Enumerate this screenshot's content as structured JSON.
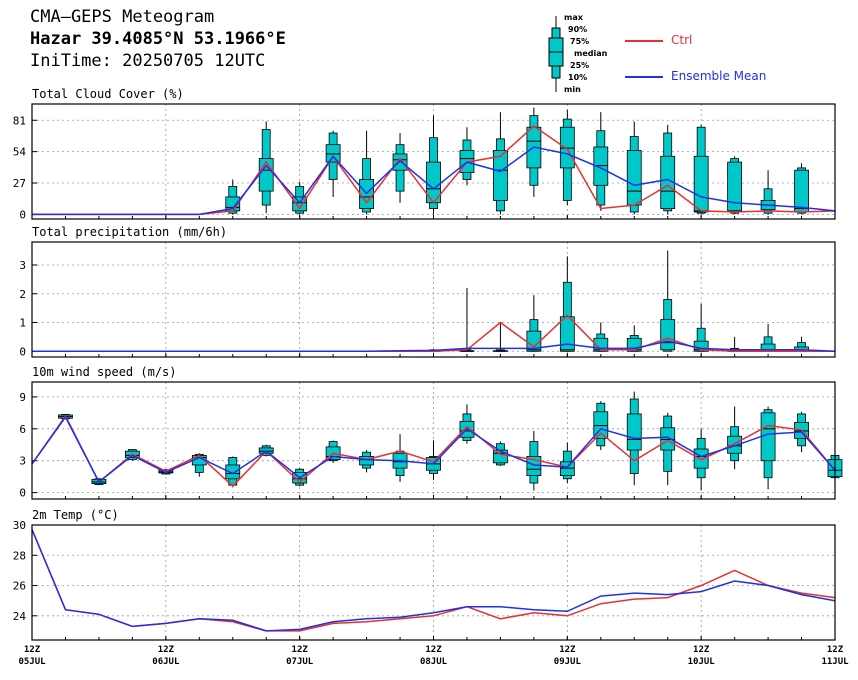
{
  "header": {
    "title": "CMA–GEPS Meteogram",
    "location": "Hazar 39.4085°N 53.1966°E",
    "init": "IniTime: 20250705 12UTC"
  },
  "legend": {
    "max": "max",
    "p90": "90%",
    "p75": "75%",
    "median": "median",
    "p25": "25%",
    "p10": "10%",
    "min": "min",
    "ctrl": "Ctrl",
    "mean": "Ensemble Mean"
  },
  "colors": {
    "box": "#00c8c8",
    "ctrl": "#e83030",
    "mean": "#2030e8",
    "grid": "#9a9a9a"
  },
  "x_axis": {
    "hours": [
      0,
      24,
      48,
      72,
      96,
      120,
      144
    ],
    "labels_top": [
      "12Z",
      "12Z",
      "12Z",
      "12Z",
      "12Z",
      "12Z",
      "12Z"
    ],
    "labels_bottom": [
      "05JUL",
      "06JUL",
      "07JUL",
      "08JUL",
      "09JUL",
      "10JUL",
      "11JUL"
    ]
  },
  "chart_data": [
    {
      "type": "box",
      "title": "Total Cloud Cover (%)",
      "ylim": [
        -4,
        95
      ],
      "yticks": [
        0,
        27,
        54,
        81
      ],
      "grid": true,
      "x": [
        0,
        6,
        12,
        18,
        24,
        30,
        36,
        42,
        48,
        54,
        60,
        66,
        72,
        78,
        84,
        90,
        96,
        102,
        108,
        114,
        120,
        126,
        132,
        138,
        144
      ],
      "ctrl": [
        0,
        0,
        0,
        0,
        0,
        0,
        3,
        45,
        5,
        50,
        10,
        48,
        10,
        45,
        50,
        76,
        56,
        5,
        8,
        25,
        3,
        2,
        3,
        2,
        3
      ],
      "mean": [
        0,
        0,
        0,
        0,
        0,
        0,
        5,
        42,
        10,
        50,
        18,
        46,
        22,
        45,
        37,
        58,
        52,
        40,
        25,
        30,
        15,
        10,
        8,
        6,
        3
      ],
      "boxes": [
        {
          "x": 36,
          "min": 0,
          "p10": 1,
          "p25": 3,
          "median": 6,
          "p75": 15,
          "p90": 24,
          "max": 30
        },
        {
          "x": 42,
          "min": 1,
          "p10": 8,
          "p25": 20,
          "median": 38,
          "p75": 48,
          "p90": 73,
          "max": 80
        },
        {
          "x": 48,
          "min": 0,
          "p10": 1,
          "p25": 3,
          "median": 10,
          "p75": 15,
          "p90": 24,
          "max": 28
        },
        {
          "x": 54,
          "min": 15,
          "p10": 30,
          "p25": 45,
          "median": 52,
          "p75": 60,
          "p90": 70,
          "max": 72
        },
        {
          "x": 60,
          "min": 0,
          "p10": 2,
          "p25": 5,
          "median": 15,
          "p75": 30,
          "p90": 48,
          "max": 72
        },
        {
          "x": 66,
          "min": 10,
          "p10": 20,
          "p25": 38,
          "median": 47,
          "p75": 52,
          "p90": 60,
          "max": 70
        },
        {
          "x": 72,
          "min": 0,
          "p10": 5,
          "p25": 10,
          "median": 22,
          "p75": 45,
          "p90": 66,
          "max": 85
        },
        {
          "x": 78,
          "min": 25,
          "p10": 30,
          "p25": 36,
          "median": 48,
          "p75": 55,
          "p90": 64,
          "max": 75
        },
        {
          "x": 84,
          "min": 0,
          "p10": 3,
          "p25": 12,
          "median": 38,
          "p75": 55,
          "p90": 65,
          "max": 88
        },
        {
          "x": 90,
          "min": 15,
          "p10": 25,
          "p25": 40,
          "median": 63,
          "p75": 75,
          "p90": 85,
          "max": 92
        },
        {
          "x": 96,
          "min": 8,
          "p10": 12,
          "p25": 40,
          "median": 57,
          "p75": 75,
          "p90": 82,
          "max": 90
        },
        {
          "x": 102,
          "min": 3,
          "p10": 8,
          "p25": 25,
          "median": 42,
          "p75": 58,
          "p90": 72,
          "max": 88
        },
        {
          "x": 108,
          "min": 0,
          "p10": 2,
          "p25": 8,
          "median": 20,
          "p75": 55,
          "p90": 67,
          "max": 80
        },
        {
          "x": 114,
          "min": 0,
          "p10": 3,
          "p25": 5,
          "median": 20,
          "p75": 50,
          "p90": 70,
          "max": 77
        },
        {
          "x": 120,
          "min": 0,
          "p10": 1,
          "p25": 2,
          "median": 3,
          "p75": 50,
          "p90": 75,
          "max": 77
        },
        {
          "x": 126,
          "min": 0,
          "p10": 1,
          "p25": 2,
          "median": 3,
          "p75": 45,
          "p90": 48,
          "max": 50
        },
        {
          "x": 132,
          "min": 0,
          "p10": 1,
          "p25": 4,
          "median": 8,
          "p75": 12,
          "p90": 22,
          "max": 38
        },
        {
          "x": 138,
          "min": 0,
          "p10": 1,
          "p25": 2,
          "median": 5,
          "p75": 38,
          "p90": 40,
          "max": 44
        }
      ]
    },
    {
      "type": "box",
      "title": "Total precipitation (mm/6h)",
      "ylim": [
        -0.2,
        3.8
      ],
      "yticks": [
        0,
        1,
        2,
        3
      ],
      "grid": true,
      "x": [
        0,
        6,
        12,
        18,
        24,
        30,
        36,
        42,
        48,
        54,
        60,
        66,
        72,
        78,
        84,
        90,
        96,
        102,
        108,
        114,
        120,
        126,
        132,
        138,
        144
      ],
      "ctrl": [
        0,
        0,
        0,
        0,
        0,
        0,
        0,
        0,
        0,
        0,
        0,
        0,
        0,
        0.05,
        1.0,
        0.15,
        1.25,
        0.05,
        0.05,
        0.45,
        0.05,
        0,
        0,
        0,
        0
      ],
      "mean": [
        0,
        0,
        0,
        0,
        0,
        0,
        0,
        0,
        0,
        0,
        0,
        0.02,
        0.03,
        0.1,
        0.1,
        0.1,
        0.25,
        0.1,
        0.1,
        0.35,
        0.1,
        0.05,
        0.05,
        0.05,
        0
      ],
      "boxes": [
        {
          "x": 72,
          "min": 0,
          "p10": 0,
          "p25": 0,
          "median": 0,
          "p75": 0.02,
          "p90": 0.05,
          "max": 0.08
        },
        {
          "x": 78,
          "min": 0,
          "p10": 0,
          "p25": 0,
          "median": 0,
          "p75": 0.02,
          "p90": 0.05,
          "max": 2.2
        },
        {
          "x": 84,
          "min": 0,
          "p10": 0,
          "p25": 0,
          "median": 0,
          "p75": 0.02,
          "p90": 0.05,
          "max": 1.0
        },
        {
          "x": 90,
          "min": 0,
          "p10": 0,
          "p25": 0,
          "median": 0.05,
          "p75": 0.7,
          "p90": 1.1,
          "max": 1.95
        },
        {
          "x": 96,
          "min": 0,
          "p10": 0,
          "p25": 0,
          "median": 0.05,
          "p75": 1.2,
          "p90": 2.4,
          "max": 3.3
        },
        {
          "x": 102,
          "min": 0,
          "p10": 0,
          "p25": 0,
          "median": 0.05,
          "p75": 0.45,
          "p90": 0.6,
          "max": 1.0
        },
        {
          "x": 108,
          "min": 0,
          "p10": 0,
          "p25": 0,
          "median": 0.05,
          "p75": 0.45,
          "p90": 0.55,
          "max": 0.9
        },
        {
          "x": 114,
          "min": 0,
          "p10": 0,
          "p25": 0.05,
          "median": 0.3,
          "p75": 1.1,
          "p90": 1.8,
          "max": 3.5
        },
        {
          "x": 120,
          "min": 0,
          "p10": 0,
          "p25": 0,
          "median": 0.05,
          "p75": 0.35,
          "p90": 0.8,
          "max": 1.65
        },
        {
          "x": 126,
          "min": 0,
          "p10": 0,
          "p25": 0,
          "median": 0,
          "p75": 0.02,
          "p90": 0.1,
          "max": 0.5
        },
        {
          "x": 132,
          "min": 0,
          "p10": 0,
          "p25": 0,
          "median": 0.02,
          "p75": 0.25,
          "p90": 0.5,
          "max": 0.95
        },
        {
          "x": 138,
          "min": 0,
          "p10": 0,
          "p25": 0,
          "median": 0.02,
          "p75": 0.15,
          "p90": 0.3,
          "max": 0.5
        }
      ]
    },
    {
      "type": "box",
      "title": "10m wind speed (m/s)",
      "ylim": [
        -0.6,
        10.4
      ],
      "yticks": [
        0,
        3,
        6,
        9
      ],
      "grid": true,
      "x": [
        0,
        6,
        12,
        18,
        24,
        30,
        36,
        42,
        48,
        54,
        60,
        66,
        72,
        78,
        84,
        90,
        96,
        102,
        108,
        114,
        120,
        126,
        132,
        138,
        144
      ],
      "ctrl": [
        2.7,
        7.2,
        1.0,
        3.6,
        2.0,
        3.5,
        0.6,
        3.9,
        1.0,
        3.7,
        3.1,
        3.9,
        2.9,
        6.2,
        3.6,
        3.1,
        2.4,
        5.6,
        3.0,
        4.9,
        3.1,
        4.6,
        6.3,
        5.9,
        2.1
      ],
      "mean": [
        2.7,
        7.1,
        1.0,
        3.5,
        1.9,
        3.3,
        1.8,
        3.9,
        1.4,
        3.4,
        3.1,
        3.0,
        2.7,
        6.0,
        3.9,
        2.6,
        2.4,
        6.0,
        5.1,
        5.2,
        3.4,
        4.4,
        5.5,
        5.7,
        2.1
      ],
      "boxes": [
        {
          "x": 6,
          "min": 6.9,
          "p10": 6.95,
          "p25": 7.0,
          "median": 7.15,
          "p75": 7.3,
          "p90": 7.35,
          "max": 7.4
        },
        {
          "x": 12,
          "min": 0.7,
          "p10": 0.75,
          "p25": 0.85,
          "median": 1.0,
          "p75": 1.25,
          "p90": 1.3,
          "max": 1.35
        },
        {
          "x": 18,
          "min": 3.0,
          "p10": 3.1,
          "p25": 3.3,
          "median": 3.5,
          "p75": 3.9,
          "p90": 4.05,
          "max": 4.1
        },
        {
          "x": 24,
          "min": 1.7,
          "p10": 1.75,
          "p25": 1.85,
          "median": 1.95,
          "p75": 2.1,
          "p90": 2.15,
          "max": 2.2
        },
        {
          "x": 30,
          "min": 1.5,
          "p10": 1.9,
          "p25": 2.6,
          "median": 3.3,
          "p75": 3.5,
          "p90": 3.6,
          "max": 3.7
        },
        {
          "x": 36,
          "min": 0.5,
          "p10": 0.7,
          "p25": 1.3,
          "median": 1.8,
          "p75": 2.6,
          "p90": 3.3,
          "max": 3.4
        },
        {
          "x": 42,
          "min": 3.4,
          "p10": 3.5,
          "p25": 3.7,
          "median": 3.9,
          "p75": 4.2,
          "p90": 4.4,
          "max": 4.5
        },
        {
          "x": 48,
          "min": 0.6,
          "p10": 0.7,
          "p25": 0.9,
          "median": 1.3,
          "p75": 1.9,
          "p90": 2.2,
          "max": 2.3
        },
        {
          "x": 54,
          "min": 2.8,
          "p10": 3.0,
          "p25": 3.1,
          "median": 3.4,
          "p75": 4.3,
          "p90": 4.8,
          "max": 4.9
        },
        {
          "x": 60,
          "min": 1.9,
          "p10": 2.3,
          "p25": 2.6,
          "median": 3.1,
          "p75": 3.4,
          "p90": 3.8,
          "max": 4.0
        },
        {
          "x": 66,
          "min": 1.0,
          "p10": 1.6,
          "p25": 2.3,
          "median": 2.9,
          "p75": 3.7,
          "p90": 3.9,
          "max": 5.5
        },
        {
          "x": 72,
          "min": 1.2,
          "p10": 1.8,
          "p25": 2.1,
          "median": 2.7,
          "p75": 3.3,
          "p90": 3.4,
          "max": 4.9
        },
        {
          "x": 78,
          "min": 4.6,
          "p10": 4.9,
          "p25": 5.2,
          "median": 5.8,
          "p75": 6.7,
          "p90": 7.4,
          "max": 8.3
        },
        {
          "x": 84,
          "min": 2.5,
          "p10": 2.6,
          "p25": 2.8,
          "median": 3.7,
          "p75": 4.0,
          "p90": 4.6,
          "max": 4.8
        },
        {
          "x": 90,
          "min": 0.2,
          "p10": 0.9,
          "p25": 1.6,
          "median": 2.2,
          "p75": 3.4,
          "p90": 4.8,
          "max": 5.8
        },
        {
          "x": 96,
          "min": 0.9,
          "p10": 1.3,
          "p25": 1.6,
          "median": 2.3,
          "p75": 2.9,
          "p90": 3.9,
          "max": 4.7
        },
        {
          "x": 102,
          "min": 4.0,
          "p10": 4.4,
          "p25": 5.1,
          "median": 6.3,
          "p75": 7.6,
          "p90": 8.4,
          "max": 8.6
        },
        {
          "x": 108,
          "min": 0.7,
          "p10": 1.8,
          "p25": 4.0,
          "median": 5.0,
          "p75": 7.4,
          "p90": 8.8,
          "max": 9.5
        },
        {
          "x": 114,
          "min": 0.7,
          "p10": 2.0,
          "p25": 4.0,
          "median": 5.0,
          "p75": 6.1,
          "p90": 7.2,
          "max": 7.5
        },
        {
          "x": 120,
          "min": 0.2,
          "p10": 1.4,
          "p25": 2.3,
          "median": 3.4,
          "p75": 4.1,
          "p90": 5.1,
          "max": 6.0
        },
        {
          "x": 126,
          "min": 2.2,
          "p10": 3.0,
          "p25": 3.7,
          "median": 4.4,
          "p75": 5.3,
          "p90": 6.2,
          "max": 8.1
        },
        {
          "x": 132,
          "min": 0.3,
          "p10": 1.4,
          "p25": 3.0,
          "median": 6.0,
          "p75": 7.5,
          "p90": 7.8,
          "max": 8.1
        },
        {
          "x": 138,
          "min": 3.8,
          "p10": 4.4,
          "p25": 5.1,
          "median": 5.8,
          "p75": 6.6,
          "p90": 7.4,
          "max": 7.6
        },
        {
          "x": 144,
          "min": 1.3,
          "p10": 1.4,
          "p25": 1.5,
          "median": 2.1,
          "p75": 3.1,
          "p90": 3.5,
          "max": 3.6
        }
      ]
    },
    {
      "type": "box",
      "title": "2m Temp (°C)",
      "ylim": [
        22.4,
        30.0
      ],
      "yticks": [
        24,
        26,
        28,
        30
      ],
      "grid": true,
      "x": [
        0,
        6,
        12,
        18,
        24,
        30,
        36,
        42,
        48,
        54,
        60,
        66,
        72,
        78,
        84,
        90,
        96,
        102,
        108,
        114,
        120,
        126,
        132,
        138,
        144
      ],
      "ctrl": [
        29.7,
        24.4,
        24.1,
        23.3,
        23.5,
        23.8,
        23.6,
        23.0,
        23.0,
        23.5,
        23.6,
        23.8,
        24.0,
        24.6,
        23.8,
        24.2,
        24.0,
        24.8,
        25.1,
        25.2,
        26.0,
        27.0,
        26.0,
        25.5,
        25.2
      ],
      "mean": [
        29.7,
        24.4,
        24.1,
        23.3,
        23.5,
        23.8,
        23.7,
        23.0,
        23.1,
        23.6,
        23.8,
        23.9,
        24.2,
        24.6,
        24.6,
        24.4,
        24.3,
        25.3,
        25.5,
        25.4,
        25.6,
        26.3,
        26.0,
        25.4,
        25.0
      ]
    }
  ]
}
